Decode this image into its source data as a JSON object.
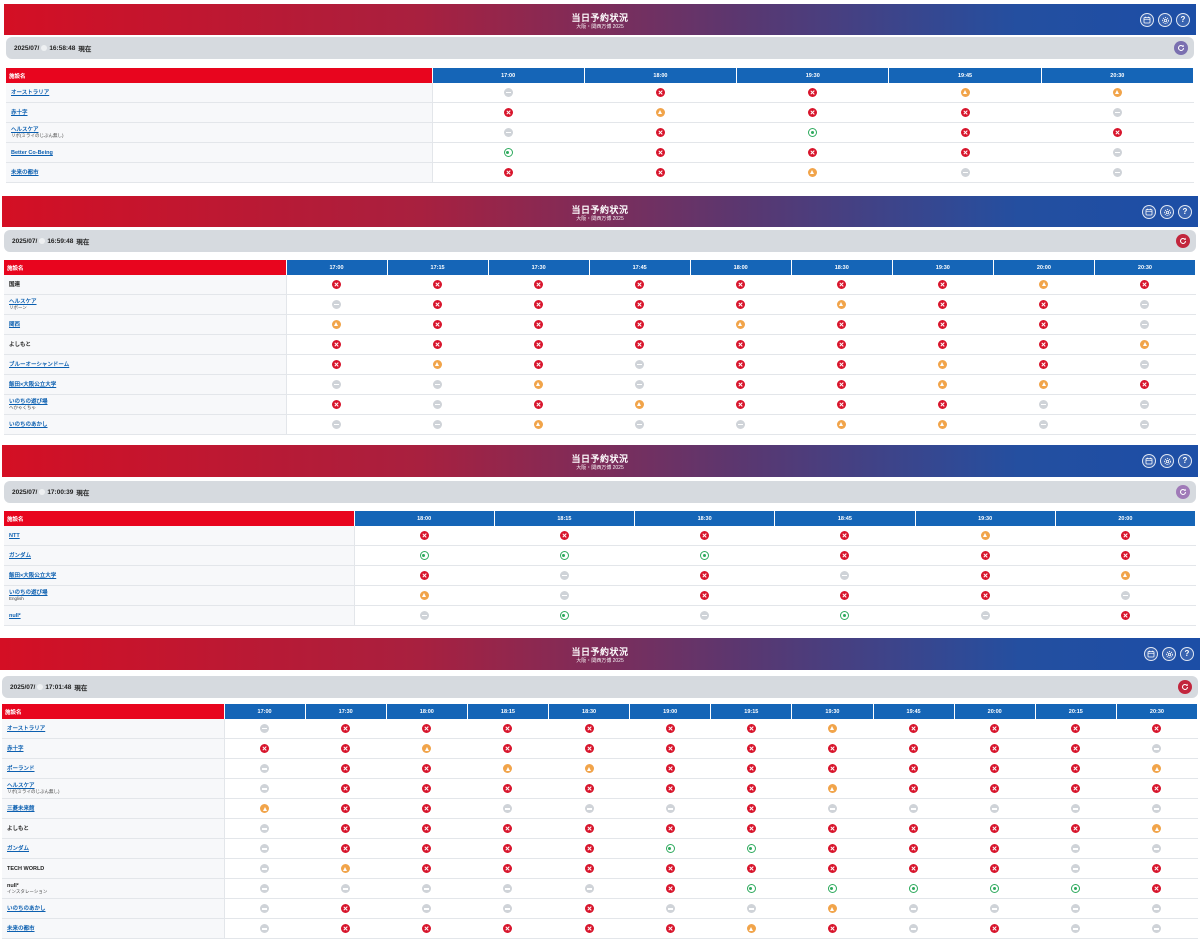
{
  "panels": [
    {
      "header": {
        "title": "当日予約状況",
        "subtitle": "大阪・関西万博 2025"
      },
      "status": {
        "date": "2025/07/",
        "time": "16:58:48",
        "suffix": "現在"
      },
      "facility_header": "施設名",
      "times": [
        "17:00",
        "18:00",
        "19:30",
        "19:45",
        "20:30"
      ],
      "rows": [
        {
          "name": "オーストラリア",
          "sub": "",
          "link": true,
          "cells": [
            "none",
            "full",
            "full",
            "few",
            "few"
          ]
        },
        {
          "name": "赤十字",
          "sub": "",
          "link": true,
          "cells": [
            "full",
            "few",
            "full",
            "full",
            "none"
          ]
        },
        {
          "name": "ヘルスケア",
          "sub": "リボ(ミライのじぶん無し)",
          "link": true,
          "cells": [
            "none",
            "full",
            "open",
            "full",
            "full"
          ]
        },
        {
          "name": "Better Co-Being",
          "sub": "",
          "link": true,
          "cells": [
            "open",
            "full",
            "full",
            "full",
            "none"
          ]
        },
        {
          "name": "未来の都市",
          "sub": "",
          "link": true,
          "cells": [
            "full",
            "full",
            "few",
            "none",
            "none"
          ]
        }
      ]
    },
    {
      "header": {
        "title": "当日予約状況",
        "subtitle": "大阪・関西万博 2025"
      },
      "status": {
        "date": "2025/07/",
        "time": "16:59:48",
        "suffix": "現在"
      },
      "facility_header": "施設名",
      "times": [
        "17:00",
        "17:15",
        "17:30",
        "17:45",
        "18:00",
        "18:30",
        "19:30",
        "20:00",
        "20:30"
      ],
      "rows": [
        {
          "name": "国連",
          "sub": "",
          "link": false,
          "cells": [
            "full",
            "full",
            "full",
            "full",
            "full",
            "full",
            "full",
            "few",
            "full"
          ]
        },
        {
          "name": "ヘルスケア",
          "sub": "リボーン",
          "link": true,
          "cells": [
            "none",
            "full",
            "full",
            "full",
            "full",
            "few",
            "full",
            "full",
            "none"
          ]
        },
        {
          "name": "関西",
          "sub": "",
          "link": true,
          "cells": [
            "few",
            "full",
            "full",
            "full",
            "few",
            "full",
            "full",
            "full",
            "none"
          ]
        },
        {
          "name": "よしもと",
          "sub": "",
          "link": false,
          "cells": [
            "full",
            "full",
            "full",
            "full",
            "full",
            "full",
            "full",
            "full",
            "few"
          ]
        },
        {
          "name": "ブルーオーシャンドーム",
          "sub": "",
          "link": true,
          "cells": [
            "full",
            "few",
            "full",
            "none",
            "full",
            "full",
            "few",
            "full",
            "none"
          ]
        },
        {
          "name": "飯田×大阪公立大学",
          "sub": "",
          "link": true,
          "cells": [
            "none",
            "none",
            "few",
            "none",
            "full",
            "full",
            "few",
            "few",
            "full"
          ]
        },
        {
          "name": "いのちの遊び場",
          "sub": "ヘかゃくちゃ",
          "link": true,
          "cells": [
            "full",
            "none",
            "full",
            "few",
            "full",
            "full",
            "full",
            "none",
            "none"
          ]
        },
        {
          "name": "いのちのあかし",
          "sub": "",
          "link": true,
          "cells": [
            "none",
            "none",
            "few",
            "none",
            "none",
            "few",
            "few",
            "none",
            "none"
          ]
        }
      ]
    },
    {
      "header": {
        "title": "当日予約状況",
        "subtitle": "大阪・関西万博 2025"
      },
      "status": {
        "date": "2025/07/",
        "time": "17:00:39",
        "suffix": "現在"
      },
      "facility_header": "施設名",
      "times": [
        "18:00",
        "18:15",
        "18:30",
        "18:45",
        "19:30",
        "20:00"
      ],
      "rows": [
        {
          "name": "NTT",
          "sub": "",
          "link": true,
          "cells": [
            "full",
            "full",
            "full",
            "full",
            "few",
            "full"
          ]
        },
        {
          "name": "ガンダム",
          "sub": "",
          "link": true,
          "cells": [
            "open",
            "open",
            "open",
            "full",
            "full",
            "full"
          ]
        },
        {
          "name": "飯田×大阪公立大学",
          "sub": "",
          "link": true,
          "cells": [
            "full",
            "none",
            "full",
            "none",
            "full",
            "few"
          ]
        },
        {
          "name": "いのちの遊び場",
          "sub": "English",
          "link": true,
          "cells": [
            "few",
            "none",
            "full",
            "full",
            "full",
            "none"
          ]
        },
        {
          "name": "null²",
          "sub": "",
          "link": true,
          "cells": [
            "none",
            "open",
            "none",
            "open",
            "none",
            "full"
          ]
        }
      ]
    },
    {
      "header": {
        "title": "当日予約状況",
        "subtitle": "大阪・関西万博 2025"
      },
      "status": {
        "date": "2025/07/",
        "time": "17:01:48",
        "suffix": "現在"
      },
      "facility_header": "施設名",
      "times": [
        "17:00",
        "17:30",
        "18:00",
        "18:15",
        "18:30",
        "19:00",
        "19:15",
        "19:30",
        "19:45",
        "20:00",
        "20:15",
        "20:30"
      ],
      "rows": [
        {
          "name": "オーストラリア",
          "sub": "",
          "link": true,
          "cells": [
            "none",
            "full",
            "full",
            "full",
            "full",
            "full",
            "full",
            "few",
            "full",
            "full",
            "full",
            "full"
          ]
        },
        {
          "name": "赤十字",
          "sub": "",
          "link": true,
          "cells": [
            "full",
            "full",
            "few",
            "full",
            "full",
            "full",
            "full",
            "full",
            "full",
            "full",
            "full",
            "none"
          ]
        },
        {
          "name": "ポーランド",
          "sub": "",
          "link": true,
          "cells": [
            "none",
            "full",
            "full",
            "few",
            "few",
            "full",
            "full",
            "full",
            "full",
            "full",
            "full",
            "few"
          ]
        },
        {
          "name": "ヘルスケア",
          "sub": "リボ(ミライのじぶん無し)",
          "link": true,
          "cells": [
            "none",
            "full",
            "full",
            "full",
            "full",
            "full",
            "full",
            "few",
            "full",
            "full",
            "full",
            "full"
          ]
        },
        {
          "name": "三菱未来館",
          "sub": "",
          "link": true,
          "cells": [
            "few",
            "full",
            "full",
            "none",
            "none",
            "none",
            "full",
            "none",
            "none",
            "none",
            "none",
            "none"
          ]
        },
        {
          "name": "よしもと",
          "sub": "",
          "link": false,
          "cells": [
            "none",
            "full",
            "full",
            "full",
            "full",
            "full",
            "full",
            "full",
            "full",
            "full",
            "full",
            "few"
          ]
        },
        {
          "name": "ガンダム",
          "sub": "",
          "link": true,
          "cells": [
            "none",
            "full",
            "full",
            "full",
            "full",
            "open",
            "open",
            "full",
            "full",
            "full",
            "none",
            "none"
          ]
        },
        {
          "name": "TECH WORLD",
          "sub": "",
          "link": false,
          "cells": [
            "none",
            "few",
            "full",
            "full",
            "full",
            "full",
            "full",
            "full",
            "full",
            "full",
            "none",
            "full"
          ]
        },
        {
          "name": "null²",
          "sub": "インスタレーション",
          "link": false,
          "cells": [
            "none",
            "none",
            "none",
            "none",
            "none",
            "full",
            "open",
            "open",
            "open",
            "open",
            "open",
            "full"
          ]
        },
        {
          "name": "いのちのあかし",
          "sub": "",
          "link": true,
          "cells": [
            "none",
            "full",
            "none",
            "none",
            "full",
            "none",
            "none",
            "few",
            "none",
            "none",
            "none",
            "none"
          ]
        },
        {
          "name": "未来の都市",
          "sub": "",
          "link": true,
          "cells": [
            "none",
            "full",
            "full",
            "full",
            "full",
            "full",
            "few",
            "full",
            "none",
            "full",
            "none",
            "none"
          ]
        }
      ]
    }
  ],
  "icons": {
    "calendar": "calendar-icon",
    "settings": "gear-icon",
    "help": "help-icon",
    "refresh": "refresh-icon"
  },
  "status_colors": {
    "full": "#d8152c",
    "few": "#f1a44a",
    "open": "#2eaa5d",
    "none": "#cfd3d8"
  },
  "brand": {
    "header_left": "#d40f24",
    "header_right": "#1c4ea6",
    "table_head": "#1565b7",
    "facility_head": "#e8051e"
  }
}
